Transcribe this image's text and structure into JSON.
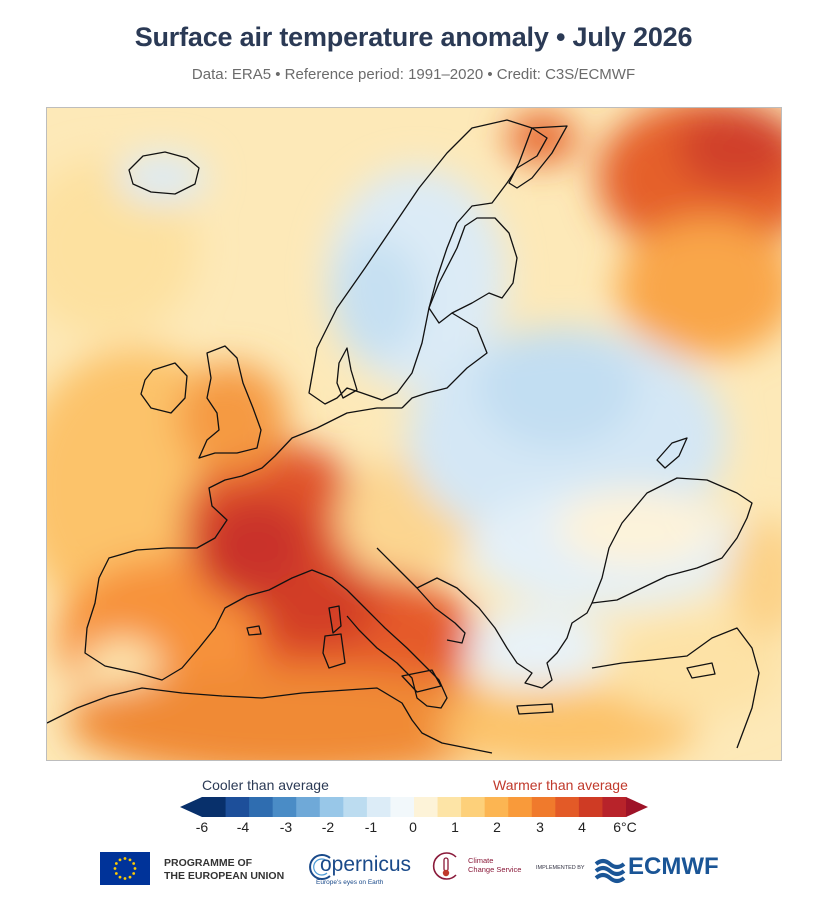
{
  "header": {
    "title": "Surface air temperature anomaly • July 2026",
    "subtitle": "Data: ERA5 • Reference period: 1991–2020 • Credit: C3S/ECMWF"
  },
  "map": {
    "region": "Europe",
    "variable": "surface air temperature anomaly",
    "anomaly_pattern": [
      {
        "area": "France",
        "level": "strongly warmer",
        "approx_anomaly_c": 5
      },
      {
        "area": "Iberia",
        "level": "warmer",
        "approx_anomaly_c": 3
      },
      {
        "area": "Italy and central Mediterranean",
        "level": "strongly warmer",
        "approx_anomaly_c": 4
      },
      {
        "area": "North Africa",
        "level": "warmer",
        "approx_anomaly_c": 3
      },
      {
        "area": "British Isles",
        "level": "warmer",
        "approx_anomaly_c": 3
      },
      {
        "area": "Northwest Russia",
        "level": "strongly warmer",
        "approx_anomaly_c": 5
      },
      {
        "area": "Scandinavia",
        "level": "cooler",
        "approx_anomaly_c": -1
      },
      {
        "area": "Eastern Europe",
        "level": "cooler",
        "approx_anomaly_c": -1
      },
      {
        "area": "Black Sea region",
        "level": "near average",
        "approx_anomaly_c": 0
      },
      {
        "area": "Turkey",
        "level": "slightly warmer",
        "approx_anomaly_c": 1
      }
    ]
  },
  "legend": {
    "cooler_label": "Cooler than average",
    "warmer_label": "Warmer than average",
    "ticks": [
      "-6",
      "-4",
      "-3",
      "-2",
      "-1",
      "0",
      "1",
      "2",
      "3",
      "4",
      "6°C"
    ],
    "colors": [
      "#08306b",
      "#1d4f9a",
      "#2f6db0",
      "#4a8cc6",
      "#6fa9d8",
      "#98c7e8",
      "#bcdcf0",
      "#dcecf7",
      "#f2f8fb",
      "#fdf3d8",
      "#fde4a6",
      "#fdd07a",
      "#fcb552",
      "#f99a3a",
      "#f07a2c",
      "#e35a27",
      "#cf3b24",
      "#b8232a"
    ],
    "low_arrow_color": "#08306b",
    "high_arrow_color": "#9e1328"
  },
  "footer": {
    "eu_line1": "PROGRAMME OF",
    "eu_line2": "THE EUROPEAN UNION",
    "copernicus_name": "opernicus",
    "copernicus_tag": "Europe's eyes on Earth",
    "c3s_line1": "Climate",
    "c3s_line2": "Change Service",
    "implemented_by": "IMPLEMENTED BY",
    "ecmwf_name": "ECMWF"
  }
}
